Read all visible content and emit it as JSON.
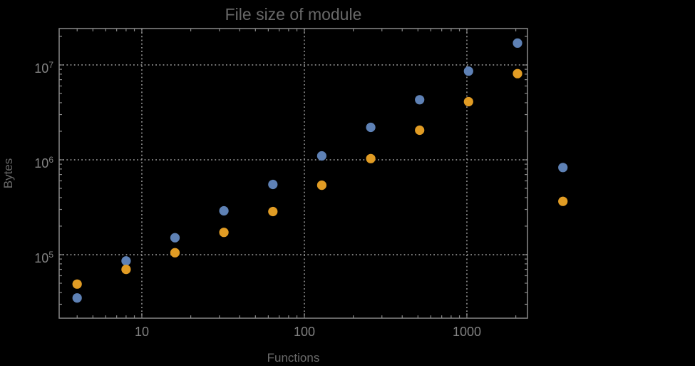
{
  "chart_data": {
    "type": "scatter",
    "title": "File size of module",
    "xlabel": "Functions",
    "ylabel": "Bytes",
    "x_scale": "log",
    "y_scale": "log",
    "xlim": [
      3.1,
      2360
    ],
    "ylim": [
      21400,
      24200000
    ],
    "grid": "dotted major gridlines on",
    "legend": "none",
    "clipping": false,
    "x_ticks": [
      {
        "value": 10,
        "label": "10"
      },
      {
        "value": 100,
        "label": "100"
      },
      {
        "value": 1000,
        "label": "1000"
      }
    ],
    "y_ticks": [
      {
        "value": 100000,
        "base": "10",
        "exponent": "5"
      },
      {
        "value": 1000000,
        "base": "10",
        "exponent": "6"
      },
      {
        "value": 10000000,
        "base": "10",
        "exponent": "7"
      }
    ],
    "series": [
      {
        "name": "blue",
        "color": "#5e81b5",
        "x": [
          4,
          8,
          16,
          32,
          64,
          128,
          256,
          512,
          1024,
          2048,
          3900
        ],
        "y": [
          35000,
          86000,
          151000,
          290000,
          550000,
          1100000,
          2200000,
          4300000,
          8600000,
          17000000,
          830000
        ]
      },
      {
        "name": "orange",
        "color": "#e19c24",
        "x": [
          4,
          8,
          16,
          32,
          64,
          128,
          256,
          512,
          1024,
          2048,
          3900
        ],
        "y": [
          49000,
          70000,
          105000,
          172000,
          285000,
          540000,
          1030000,
          2050000,
          4100000,
          8100000,
          365000
        ]
      }
    ],
    "colors": {
      "background": "#000000",
      "frame": "#898989",
      "grid": "#8a8a8a",
      "tick_labels": "#818181",
      "title": "#686868",
      "axis_labels": "#6a6a6a"
    }
  }
}
